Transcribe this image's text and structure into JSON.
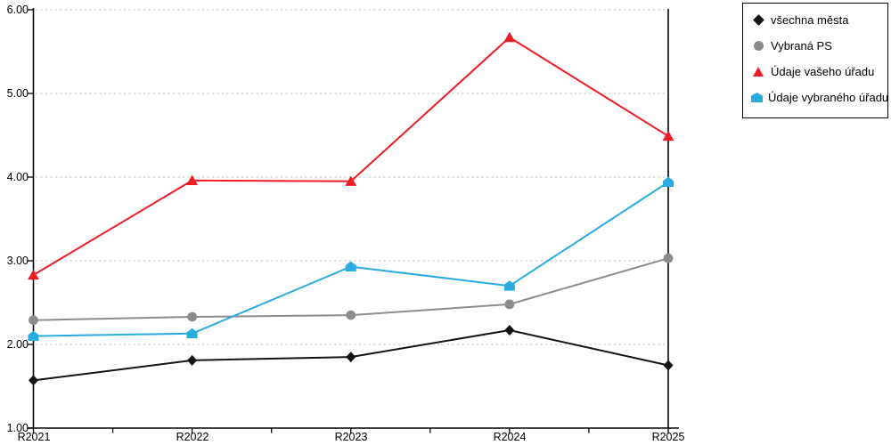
{
  "chart_data": {
    "type": "line",
    "title": "",
    "xlabel": "",
    "ylabel": "",
    "categories": [
      "R2021",
      "R2022",
      "R2023",
      "R2024",
      "R2025"
    ],
    "series": [
      {
        "name": "všechna města",
        "marker": "diamond",
        "color": "#141414",
        "values": [
          1.57,
          1.81,
          1.85,
          2.17,
          1.75
        ]
      },
      {
        "name": "Vybraná PS",
        "marker": "circle",
        "color": "#8c8c8c",
        "values": [
          2.29,
          2.33,
          2.35,
          2.48,
          3.03
        ]
      },
      {
        "name": "Údaje vašeho úřadu",
        "marker": "triangle",
        "color": "#ee1c25",
        "values": [
          2.83,
          3.96,
          3.95,
          5.67,
          4.49
        ]
      },
      {
        "name": "Údaje vybraného úřadu",
        "marker": "pentagon",
        "color": "#29abe2",
        "values": [
          2.1,
          2.13,
          2.93,
          2.7,
          3.94
        ]
      }
    ],
    "ylim": [
      1.0,
      6.0
    ],
    "ytick_step": 1.0,
    "ytick_labels_top_to_bottom": [
      "6.00",
      "5.00",
      "4.00",
      "3.00",
      "2.00",
      "1.00"
    ],
    "grid": "horizontal dotted",
    "gridline_color": "#c9c9c9",
    "axis_color": "#000000",
    "legend_position": "top-right",
    "legend_border_color": "#000000"
  }
}
